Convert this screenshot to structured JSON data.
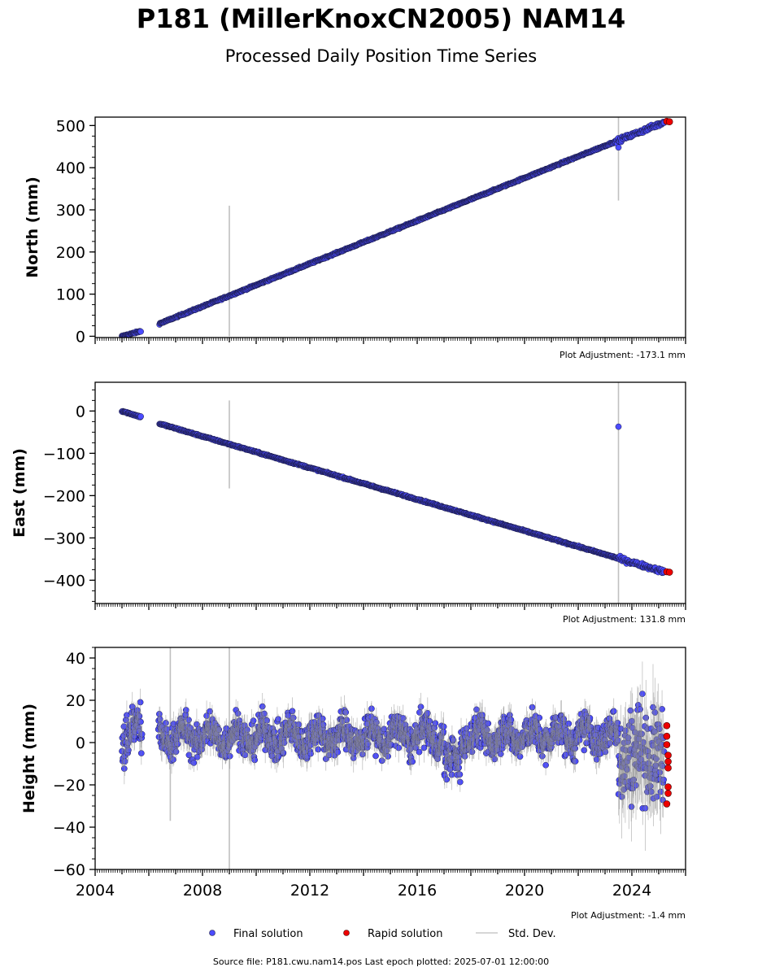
{
  "title": "P181 (MillerKnoxCN2005) NAM14",
  "subtitle": "Processed Daily Position Time Series",
  "footer": "Source file: P181.cwu.nam14.pos  Last epoch plotted: 2025-07-01 12:00:00",
  "colors": {
    "final": "#4b4bff",
    "rapid": "#ee0000",
    "std": "#c0c0c0",
    "edge": "#1a1a40"
  },
  "legend": {
    "final": "Final solution",
    "rapid": "Rapid solution",
    "std": "Std. Dev."
  },
  "chart_data": [
    {
      "type": "scatter",
      "ylabel": "North (mm)",
      "adjustment": "Plot Adjustment: -173.1 mm",
      "xlim": [
        2004.0,
        2026.0
      ],
      "ylim": [
        -3,
        520
      ],
      "yticks": [
        0,
        100,
        200,
        300,
        400,
        500
      ],
      "ytick_labels": [
        "0",
        "100",
        "200",
        "300",
        "400",
        "500"
      ],
      "x_ticks_labeled": false,
      "series": [
        {
          "name": "Final solution",
          "segments": [
            {
              "x_start": 2005.0,
              "x_end": 2005.7,
              "y_start": 0,
              "y_end": 12
            },
            {
              "x_start": 2006.4,
              "x_end": 2025.2,
              "y_start": 30,
              "y_end": 508
            }
          ],
          "outliers": [
            {
              "x": 2023.5,
              "y": 448
            }
          ]
        },
        {
          "name": "Rapid solution",
          "points": [
            {
              "x": 2025.3,
              "y": 510
            },
            {
              "x": 2025.4,
              "y": 509
            }
          ]
        }
      ],
      "std_spikes": [
        {
          "x": 2009.0,
          "y_low": 0,
          "y_high": 310
        },
        {
          "x": 2023.5,
          "y_low": 322,
          "y_high": 520
        }
      ]
    },
    {
      "type": "scatter",
      "ylabel": "East (mm)",
      "adjustment": "Plot Adjustment: 131.8 mm",
      "xlim": [
        2004.0,
        2026.0
      ],
      "ylim": [
        -455,
        68
      ],
      "yticks": [
        0,
        -100,
        -200,
        -300,
        -400
      ],
      "ytick_labels": [
        "0",
        "−100",
        "−200",
        "−300",
        "−400"
      ],
      "x_ticks_labeled": false,
      "series": [
        {
          "name": "Final solution",
          "segments": [
            {
              "x_start": 2005.0,
              "x_end": 2005.7,
              "y_start": 0,
              "y_end": -14
            },
            {
              "x_start": 2006.4,
              "x_end": 2025.2,
              "y_start": -30,
              "y_end": -380
            }
          ],
          "outliers": [
            {
              "x": 2023.5,
              "y": -37
            }
          ]
        },
        {
          "name": "Rapid solution",
          "points": [
            {
              "x": 2025.3,
              "y": -380
            },
            {
              "x": 2025.4,
              "y": -381
            }
          ]
        }
      ],
      "std_spikes": [
        {
          "x": 2009.0,
          "y_low": -183,
          "y_high": 25
        },
        {
          "x": 2023.5,
          "y_low": -455,
          "y_high": 68
        }
      ]
    },
    {
      "type": "scatter",
      "ylabel": "Height (mm)",
      "adjustment": "Plot Adjustment: -1.4 mm",
      "xlim": [
        2004.0,
        2026.0
      ],
      "ylim": [
        -60,
        45
      ],
      "yticks": [
        40,
        20,
        0,
        -20,
        -40,
        -60
      ],
      "ytick_labels": [
        "40",
        "20",
        "0",
        "−20",
        "−40",
        "−60"
      ],
      "x_ticks_labeled": true,
      "xticks": [
        2004,
        2008,
        2012,
        2016,
        2020,
        2024
      ],
      "xtick_labels": [
        "2004",
        "2008",
        "2012",
        "2016",
        "2020",
        "2024"
      ],
      "series": [
        {
          "name": "Final solution",
          "mean": 3,
          "scatter_mm": 6,
          "x_range": [
            2005.0,
            2025.2
          ]
        },
        {
          "name": "Rapid solution",
          "points": [
            {
              "x": 2025.3,
              "y": 8
            },
            {
              "x": 2025.3,
              "y": 3
            },
            {
              "x": 2025.3,
              "y": -1
            },
            {
              "x": 2025.35,
              "y": -6
            },
            {
              "x": 2025.35,
              "y": -9
            },
            {
              "x": 2025.35,
              "y": -12
            },
            {
              "x": 2025.35,
              "y": -21
            },
            {
              "x": 2025.35,
              "y": -24
            },
            {
              "x": 2025.3,
              "y": -29
            }
          ]
        }
      ],
      "std_spikes": [
        {
          "x": 2009.0,
          "y_low": -60,
          "y_high": 45
        },
        {
          "x": 2006.8,
          "y_low": -37,
          "y_high": 45
        }
      ]
    }
  ]
}
